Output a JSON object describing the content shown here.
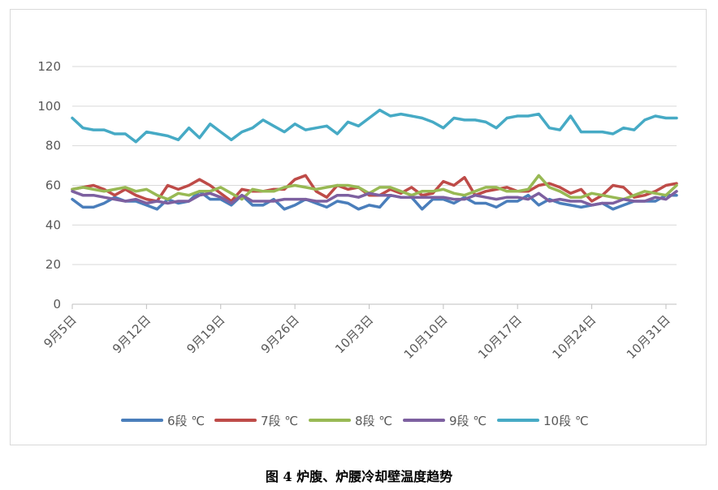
{
  "caption": "图 4 炉腹、炉腰冷却壁温度趋势",
  "chart_data": {
    "type": "line",
    "title": "",
    "xlabel": "",
    "ylabel": "",
    "ylim": [
      0,
      120
    ],
    "yticks": [
      0,
      20,
      40,
      60,
      80,
      100,
      120
    ],
    "grid": "horizontal",
    "legend_position": "bottom",
    "x": [
      "9/5",
      "9/6",
      "9/7",
      "9/8",
      "9/9",
      "9/10",
      "9/11",
      "9/12",
      "9/13",
      "9/14",
      "9/15",
      "9/16",
      "9/17",
      "9/18",
      "9/19",
      "9/20",
      "9/21",
      "9/22",
      "9/23",
      "9/24",
      "9/25",
      "9/26",
      "9/27",
      "9/28",
      "9/29",
      "9/30",
      "10/1",
      "10/2",
      "10/3",
      "10/4",
      "10/5",
      "10/6",
      "10/7",
      "10/8",
      "10/9",
      "10/10",
      "10/11",
      "10/12",
      "10/13",
      "10/14",
      "10/15",
      "10/16",
      "10/17",
      "10/18",
      "10/19",
      "10/20",
      "10/21",
      "10/22",
      "10/23",
      "10/24",
      "10/25",
      "10/26",
      "10/27",
      "10/28",
      "10/29",
      "10/30",
      "10/31",
      "11/1"
    ],
    "x_tick_labels": [
      "9月5日",
      "9月12日",
      "9月19日",
      "9月26日",
      "10月3日",
      "10月10日",
      "10月17日",
      "10月24日",
      "10月31日"
    ],
    "series": [
      {
        "name": "6段 ℃",
        "color": "#4a7ebb",
        "values": [
          53,
          49,
          49,
          51,
          54,
          52,
          52,
          50,
          48,
          53,
          51,
          52,
          57,
          53,
          53,
          50,
          55,
          50,
          50,
          53,
          48,
          50,
          53,
          51,
          49,
          52,
          51,
          48,
          50,
          49,
          55,
          54,
          54,
          48,
          53,
          53,
          51,
          54,
          51,
          51,
          49,
          52,
          52,
          55,
          50,
          53,
          51,
          50,
          49,
          50,
          51,
          48,
          50,
          52,
          52,
          52,
          55,
          55
        ]
      },
      {
        "name": "7段 ℃",
        "color": "#be4b48",
        "values": [
          58,
          59,
          60,
          58,
          55,
          58,
          55,
          53,
          52,
          60,
          58,
          60,
          63,
          60,
          56,
          52,
          58,
          57,
          57,
          58,
          58,
          63,
          65,
          57,
          54,
          60,
          58,
          59,
          55,
          55,
          58,
          56,
          59,
          55,
          56,
          62,
          60,
          64,
          55,
          57,
          58,
          59,
          57,
          57,
          60,
          61,
          59,
          56,
          58,
          52,
          55,
          60,
          59,
          54,
          55,
          57,
          60,
          61
        ]
      },
      {
        "name": "8段 ℃",
        "color": "#98b954",
        "values": [
          58,
          59,
          58,
          57,
          58,
          59,
          57,
          58,
          55,
          53,
          56,
          55,
          57,
          57,
          59,
          56,
          53,
          58,
          57,
          57,
          59,
          60,
          59,
          58,
          59,
          60,
          60,
          59,
          56,
          59,
          59,
          57,
          55,
          57,
          57,
          58,
          56,
          55,
          57,
          59,
          59,
          57,
          57,
          58,
          65,
          59,
          57,
          54,
          54,
          56,
          55,
          54,
          53,
          55,
          57,
          56,
          55,
          60
        ]
      },
      {
        "name": "9段 ℃",
        "color": "#7d60a0",
        "values": [
          57,
          55,
          55,
          54,
          53,
          52,
          53,
          51,
          52,
          51,
          52,
          52,
          55,
          56,
          54,
          51,
          55,
          52,
          52,
          52,
          53,
          53,
          53,
          52,
          52,
          55,
          55,
          54,
          56,
          55,
          55,
          54,
          54,
          54,
          54,
          54,
          53,
          53,
          55,
          54,
          53,
          54,
          54,
          53,
          56,
          52,
          53,
          52,
          52,
          50,
          51,
          51,
          53,
          52,
          52,
          54,
          53,
          57
        ]
      },
      {
        "name": "10段 ℃",
        "color": "#46aac5",
        "values": [
          94,
          89,
          88,
          88,
          86,
          86,
          82,
          87,
          86,
          85,
          83,
          89,
          84,
          91,
          87,
          83,
          87,
          89,
          93,
          90,
          87,
          91,
          88,
          89,
          90,
          86,
          92,
          90,
          94,
          98,
          95,
          96,
          95,
          94,
          92,
          89,
          94,
          93,
          93,
          92,
          89,
          94,
          95,
          95,
          96,
          89,
          88,
          95,
          87,
          87,
          87,
          86,
          89,
          88,
          93,
          95,
          94,
          94
        ]
      }
    ]
  }
}
